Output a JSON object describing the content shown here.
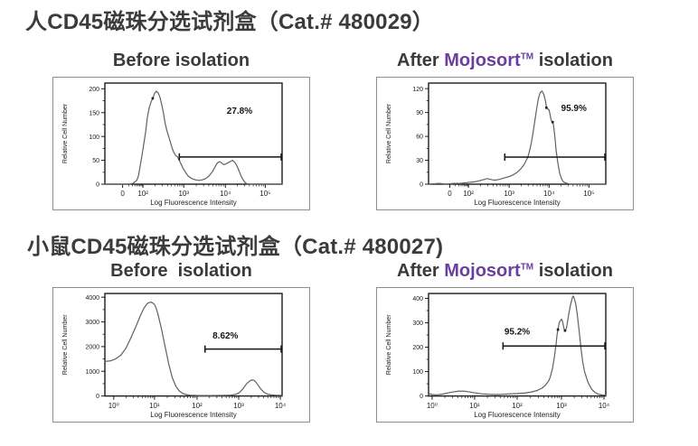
{
  "colors": {
    "title": "#3b3b3b",
    "subtitle": "#3a3a3a",
    "mojosort_purple": "#6b3fa0",
    "axis": "#1d1d1d",
    "curve": "#616161",
    "gate": "#151515",
    "box_border": "#8f8f8f",
    "background": "#ffffff"
  },
  "sections": [
    {
      "title": "人CD45磁珠分选试剂盒（Cat.# 480029）",
      "panels": [
        {
          "subtitle": {
            "prefix": "Before isolation",
            "brand": "",
            "tm": "",
            "suffix": ""
          }
        },
        {
          "subtitle": {
            "prefix": "After ",
            "brand": "Mojosort",
            "tm": "TM",
            "suffix": " isolation"
          }
        }
      ]
    },
    {
      "title": "小鼠CD45磁珠分选试剂盒（Cat.# 480027)",
      "panels": [
        {
          "subtitle": {
            "prefix": "Before  isolation",
            "brand": "",
            "tm": "",
            "suffix": ""
          }
        },
        {
          "subtitle": {
            "prefix": "After ",
            "brand": "Mojosort",
            "tm": "TM",
            "suffix": " isolation"
          }
        }
      ]
    }
  ],
  "chart_data": [
    {
      "type": "line",
      "section": "人CD45磁珠分选试剂盒（Cat.# 480029）",
      "title": "Before isolation",
      "xlabel": "Log Fluorescence Intensity",
      "ylabel": "Relative Cell Number",
      "x_ticks": [
        "0",
        "10²",
        "10³",
        "10⁴",
        "10⁵"
      ],
      "x_tick_pos": [
        0.1,
        0.215,
        0.445,
        0.68,
        0.905
      ],
      "y_ticks": [
        0,
        50,
        100,
        150,
        200
      ],
      "ymax": 212,
      "curve": [
        [
          0,
          0
        ],
        [
          0.14,
          0
        ],
        [
          0.16,
          2
        ],
        [
          0.18,
          8
        ],
        [
          0.19,
          18
        ],
        [
          0.2,
          40
        ],
        [
          0.21,
          62
        ],
        [
          0.22,
          85
        ],
        [
          0.23,
          110
        ],
        [
          0.24,
          140
        ],
        [
          0.25,
          160
        ],
        [
          0.26,
          172
        ],
        [
          0.27,
          180
        ],
        [
          0.28,
          190
        ],
        [
          0.29,
          195
        ],
        [
          0.3,
          192
        ],
        [
          0.31,
          183
        ],
        [
          0.32,
          168
        ],
        [
          0.33,
          150
        ],
        [
          0.34,
          128
        ],
        [
          0.35,
          112
        ],
        [
          0.36,
          100
        ],
        [
          0.37,
          88
        ],
        [
          0.38,
          75
        ],
        [
          0.39,
          66
        ],
        [
          0.4,
          60
        ],
        [
          0.41,
          57
        ],
        [
          0.42,
          50
        ],
        [
          0.43,
          42
        ],
        [
          0.44,
          34
        ],
        [
          0.45,
          28
        ],
        [
          0.46,
          22
        ],
        [
          0.47,
          17
        ],
        [
          0.49,
          12
        ],
        [
          0.51,
          9
        ],
        [
          0.53,
          8
        ],
        [
          0.55,
          9
        ],
        [
          0.57,
          12
        ],
        [
          0.59,
          18
        ],
        [
          0.61,
          28
        ],
        [
          0.62,
          35
        ],
        [
          0.63,
          42
        ],
        [
          0.64,
          46
        ],
        [
          0.65,
          47
        ],
        [
          0.66,
          44
        ],
        [
          0.67,
          41
        ],
        [
          0.68,
          42
        ],
        [
          0.69,
          44
        ],
        [
          0.7,
          46
        ],
        [
          0.71,
          48
        ],
        [
          0.72,
          50
        ],
        [
          0.73,
          47
        ],
        [
          0.74,
          42
        ],
        [
          0.75,
          34
        ],
        [
          0.76,
          25
        ],
        [
          0.77,
          16
        ],
        [
          0.78,
          9
        ],
        [
          0.79,
          4
        ],
        [
          0.8,
          1
        ],
        [
          0.82,
          0
        ],
        [
          1.0,
          0
        ]
      ],
      "markers": [
        [
          0.27,
          180
        ]
      ],
      "gate": {
        "label": "27.8%",
        "y": 57,
        "x1": 0.42,
        "x2": 0.995,
        "label_u": 0.76,
        "label_v": 148
      }
    },
    {
      "type": "line",
      "section": "人CD45磁珠分选试剂盒（Cat.# 480029）",
      "title": "After Mojosort™ isolation",
      "xlabel": "Log Fluorescence Intensity",
      "ylabel": "Relative Cell Number",
      "x_ticks": [
        "0",
        "10²",
        "10³",
        "10⁴",
        "10⁵"
      ],
      "x_tick_pos": [
        0.12,
        0.225,
        0.455,
        0.68,
        0.905
      ],
      "y_ticks": [
        0,
        30,
        60,
        90,
        120
      ],
      "ymax": 127,
      "curve": [
        [
          0,
          0
        ],
        [
          0.06,
          1
        ],
        [
          0.1,
          0
        ],
        [
          0.14,
          1
        ],
        [
          0.18,
          1
        ],
        [
          0.22,
          2
        ],
        [
          0.26,
          3
        ],
        [
          0.3,
          5
        ],
        [
          0.33,
          7
        ],
        [
          0.35,
          6
        ],
        [
          0.37,
          5
        ],
        [
          0.4,
          6
        ],
        [
          0.43,
          8
        ],
        [
          0.46,
          10
        ],
        [
          0.48,
          12
        ],
        [
          0.5,
          15
        ],
        [
          0.52,
          19
        ],
        [
          0.54,
          25
        ],
        [
          0.56,
          34
        ],
        [
          0.57,
          42
        ],
        [
          0.58,
          52
        ],
        [
          0.59,
          65
        ],
        [
          0.6,
          80
        ],
        [
          0.61,
          95
        ],
        [
          0.62,
          108
        ],
        [
          0.63,
          115
        ],
        [
          0.64,
          117
        ],
        [
          0.65,
          113
        ],
        [
          0.66,
          104
        ],
        [
          0.665,
          97
        ],
        [
          0.67,
          95
        ],
        [
          0.68,
          93
        ],
        [
          0.685,
          88
        ],
        [
          0.69,
          82
        ],
        [
          0.695,
          79
        ],
        [
          0.7,
          78
        ],
        [
          0.705,
          74
        ],
        [
          0.71,
          65
        ],
        [
          0.715,
          55
        ],
        [
          0.72,
          42
        ],
        [
          0.73,
          26
        ],
        [
          0.74,
          14
        ],
        [
          0.75,
          7
        ],
        [
          0.76,
          3
        ],
        [
          0.78,
          1
        ],
        [
          0.8,
          0
        ],
        [
          1.0,
          0
        ]
      ],
      "markers": [
        [
          0.665,
          96
        ],
        [
          0.7,
          78
        ]
      ],
      "gate": {
        "label": "95.9%",
        "y": 34,
        "x1": 0.43,
        "x2": 0.995,
        "label_u": 0.82,
        "label_v": 92
      }
    },
    {
      "type": "line",
      "section": "小鼠CD45磁珠分选试剂盒（Cat.# 480027)",
      "title": "Before isolation",
      "xlabel": "Log Fluorescence Intensity",
      "ylabel": "Relative Cell Number",
      "x_ticks": [
        "10⁰",
        "10¹",
        "10²",
        "10³",
        "10⁴"
      ],
      "x_tick_pos": [
        0.05,
        0.28,
        0.52,
        0.755,
        0.99
      ],
      "y_ticks": [
        0,
        1000,
        2000,
        3000,
        4000
      ],
      "ymax": 4150,
      "curve": [
        [
          0,
          1400
        ],
        [
          0.03,
          1420
        ],
        [
          0.06,
          1500
        ],
        [
          0.09,
          1650
        ],
        [
          0.12,
          1950
        ],
        [
          0.15,
          2400
        ],
        [
          0.18,
          2900
        ],
        [
          0.2,
          3250
        ],
        [
          0.22,
          3550
        ],
        [
          0.24,
          3750
        ],
        [
          0.25,
          3780
        ],
        [
          0.26,
          3800
        ],
        [
          0.27,
          3770
        ],
        [
          0.28,
          3700
        ],
        [
          0.29,
          3550
        ],
        [
          0.3,
          3300
        ],
        [
          0.32,
          2700
        ],
        [
          0.34,
          2000
        ],
        [
          0.36,
          1300
        ],
        [
          0.38,
          750
        ],
        [
          0.4,
          400
        ],
        [
          0.42,
          200
        ],
        [
          0.44,
          100
        ],
        [
          0.46,
          55
        ],
        [
          0.48,
          35
        ],
        [
          0.5,
          25
        ],
        [
          0.53,
          20
        ],
        [
          0.56,
          18
        ],
        [
          0.6,
          20
        ],
        [
          0.64,
          22
        ],
        [
          0.68,
          25
        ],
        [
          0.71,
          35
        ],
        [
          0.74,
          70
        ],
        [
          0.76,
          150
        ],
        [
          0.78,
          300
        ],
        [
          0.8,
          500
        ],
        [
          0.82,
          620
        ],
        [
          0.83,
          650
        ],
        [
          0.84,
          640
        ],
        [
          0.85,
          580
        ],
        [
          0.86,
          480
        ],
        [
          0.88,
          280
        ],
        [
          0.9,
          140
        ],
        [
          0.92,
          70
        ],
        [
          0.94,
          45
        ],
        [
          0.96,
          35
        ],
        [
          0.98,
          30
        ],
        [
          1.0,
          28
        ]
      ],
      "markers": [],
      "gate": {
        "label": "8.62%",
        "y": 1900,
        "x1": 0.565,
        "x2": 0.995,
        "label_u": 0.68,
        "label_v": 2320
      }
    },
    {
      "type": "line",
      "section": "小鼠CD45磁珠分选试剂盒（Cat.# 480027)",
      "title": "After Mojosort™ isolation",
      "xlabel": "Log Fluorescence Intensity",
      "ylabel": "Relative Cell Number",
      "x_ticks": [
        "10⁰",
        "10¹",
        "10²",
        "10³",
        "10⁴"
      ],
      "x_tick_pos": [
        0.02,
        0.26,
        0.5,
        0.75,
        0.99
      ],
      "y_ticks": [
        0,
        100,
        200,
        300,
        400
      ],
      "ymax": 420,
      "curve": [
        [
          0,
          10
        ],
        [
          0.02,
          6
        ],
        [
          0.05,
          5
        ],
        [
          0.08,
          8
        ],
        [
          0.11,
          13
        ],
        [
          0.14,
          17
        ],
        [
          0.17,
          20
        ],
        [
          0.2,
          20
        ],
        [
          0.23,
          17
        ],
        [
          0.26,
          13
        ],
        [
          0.3,
          9
        ],
        [
          0.34,
          7
        ],
        [
          0.38,
          6
        ],
        [
          0.42,
          7
        ],
        [
          0.46,
          9
        ],
        [
          0.5,
          10
        ],
        [
          0.54,
          12
        ],
        [
          0.58,
          16
        ],
        [
          0.61,
          22
        ],
        [
          0.64,
          32
        ],
        [
          0.66,
          45
        ],
        [
          0.68,
          65
        ],
        [
          0.69,
          85
        ],
        [
          0.7,
          115
        ],
        [
          0.71,
          160
        ],
        [
          0.72,
          215
        ],
        [
          0.725,
          250
        ],
        [
          0.73,
          272
        ],
        [
          0.735,
          292
        ],
        [
          0.74,
          305
        ],
        [
          0.75,
          315
        ],
        [
          0.755,
          308
        ],
        [
          0.76,
          290
        ],
        [
          0.765,
          275
        ],
        [
          0.77,
          268
        ],
        [
          0.775,
          272
        ],
        [
          0.78,
          285
        ],
        [
          0.79,
          330
        ],
        [
          0.8,
          370
        ],
        [
          0.81,
          400
        ],
        [
          0.815,
          410
        ],
        [
          0.82,
          405
        ],
        [
          0.83,
          380
        ],
        [
          0.84,
          330
        ],
        [
          0.85,
          265
        ],
        [
          0.86,
          195
        ],
        [
          0.87,
          140
        ],
        [
          0.88,
          100
        ],
        [
          0.9,
          55
        ],
        [
          0.92,
          28
        ],
        [
          0.94,
          14
        ],
        [
          0.96,
          7
        ],
        [
          0.98,
          4
        ],
        [
          1.0,
          3
        ]
      ],
      "markers": [
        [
          0.73,
          272
        ],
        [
          0.77,
          268
        ]
      ],
      "gate": {
        "label": "95.2%",
        "y": 205,
        "x1": 0.42,
        "x2": 0.995,
        "label_u": 0.5,
        "label_v": 252
      }
    }
  ]
}
